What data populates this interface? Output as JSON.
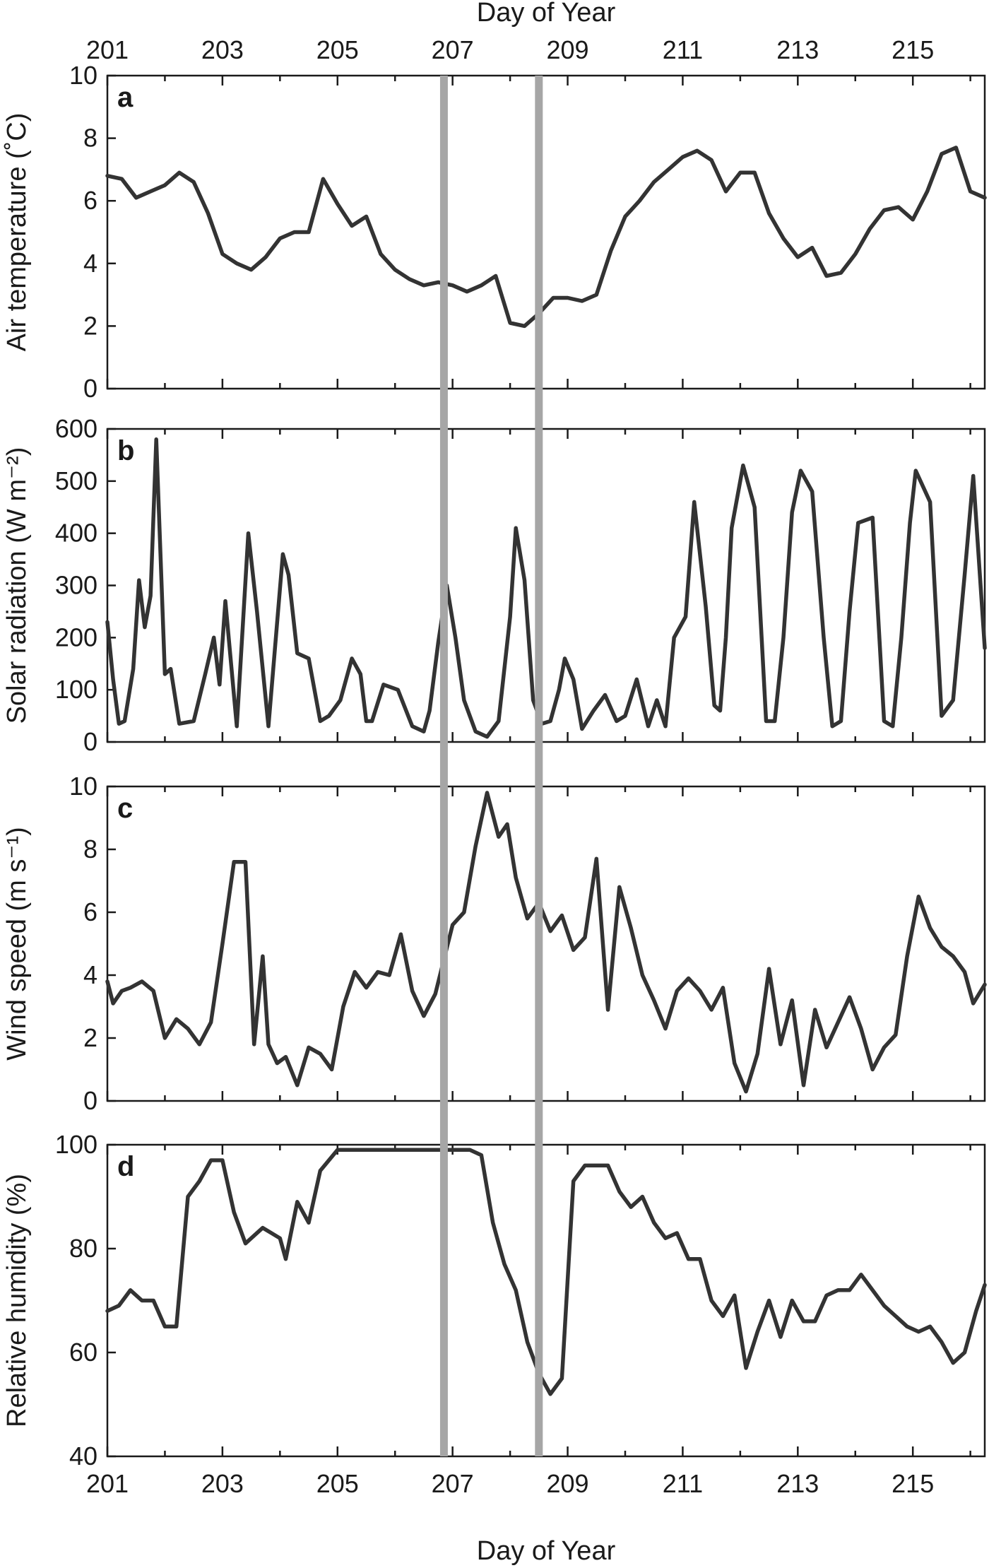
{
  "figure": {
    "top_axis_title": "Day of Year",
    "bottom_axis_title": "Day of Year",
    "x_tick_labels": [
      "201",
      "203",
      "205",
      "207",
      "209",
      "211",
      "213",
      "215"
    ]
  },
  "chart_data": [
    {
      "type": "line",
      "panel": "a",
      "ylabel": "Air temperature (˚C)",
      "xlabel": "Day of Year",
      "xlim": [
        201,
        216.25
      ],
      "ylim": [
        0,
        10
      ],
      "yticks": [
        0,
        2,
        4,
        6,
        8,
        10
      ],
      "grid": false,
      "colors": {
        "line": "#333333",
        "marker": "#a6a6a6"
      },
      "vertical_markers": [
        206.85,
        208.5
      ],
      "x": [
        201.0,
        201.25,
        201.5,
        201.75,
        202.0,
        202.25,
        202.5,
        202.75,
        203.0,
        203.25,
        203.5,
        203.75,
        204.0,
        204.25,
        204.5,
        204.75,
        205.0,
        205.25,
        205.5,
        205.75,
        206.0,
        206.25,
        206.5,
        206.75,
        207.0,
        207.25,
        207.5,
        207.75,
        208.0,
        208.25,
        208.5,
        208.75,
        209.0,
        209.25,
        209.5,
        209.75,
        210.0,
        210.25,
        210.5,
        210.75,
        211.0,
        211.25,
        211.5,
        211.75,
        212.0,
        212.25,
        212.5,
        212.75,
        213.0,
        213.25,
        213.5,
        213.75,
        214.0,
        214.25,
        214.5,
        214.75,
        215.0,
        215.25,
        215.5,
        215.75,
        216.0,
        216.25
      ],
      "y": [
        6.8,
        6.7,
        6.1,
        6.3,
        6.5,
        6.9,
        6.6,
        5.6,
        4.3,
        4.0,
        3.8,
        4.2,
        4.8,
        5.0,
        5.0,
        6.7,
        5.9,
        5.2,
        5.5,
        4.3,
        3.8,
        3.5,
        3.3,
        3.4,
        3.3,
        3.1,
        3.3,
        3.6,
        2.1,
        2.0,
        2.4,
        2.9,
        2.9,
        2.8,
        3.0,
        4.4,
        5.5,
        6.0,
        6.6,
        7.0,
        7.4,
        7.6,
        7.3,
        6.3,
        6.9,
        6.9,
        5.6,
        4.8,
        4.2,
        4.5,
        3.6,
        3.7,
        4.3,
        5.1,
        5.7,
        5.8,
        5.4,
        6.3,
        7.5,
        7.7,
        6.3,
        6.1
      ]
    },
    {
      "type": "line",
      "panel": "b",
      "ylabel": "Solar radiation (W m⁻²)",
      "xlabel": "Day of Year",
      "xlim": [
        201,
        216.25
      ],
      "ylim": [
        0,
        600
      ],
      "yticks": [
        0,
        100,
        200,
        300,
        400,
        500,
        600
      ],
      "grid": false,
      "x": [
        201.0,
        201.1,
        201.2,
        201.3,
        201.45,
        201.55,
        201.65,
        201.75,
        201.85,
        202.0,
        202.1,
        202.25,
        202.5,
        202.7,
        202.85,
        202.95,
        203.05,
        203.25,
        203.45,
        203.6,
        203.8,
        204.05,
        204.15,
        204.3,
        204.5,
        204.7,
        204.85,
        205.05,
        205.25,
        205.4,
        205.5,
        205.6,
        205.8,
        206.05,
        206.3,
        206.5,
        206.6,
        206.75,
        206.9,
        207.05,
        207.2,
        207.4,
        207.6,
        207.8,
        208.0,
        208.1,
        208.25,
        208.4,
        208.55,
        208.7,
        208.85,
        208.95,
        209.1,
        209.25,
        209.45,
        209.65,
        209.85,
        210.0,
        210.2,
        210.4,
        210.55,
        210.7,
        210.85,
        211.05,
        211.2,
        211.4,
        211.55,
        211.65,
        211.75,
        211.85,
        212.05,
        212.25,
        212.45,
        212.6,
        212.75,
        212.9,
        213.05,
        213.25,
        213.45,
        213.6,
        213.75,
        213.9,
        214.05,
        214.3,
        214.5,
        214.65,
        214.8,
        214.95,
        215.05,
        215.3,
        215.5,
        215.7,
        215.9,
        216.05,
        216.25
      ],
      "y": [
        230,
        120,
        35,
        40,
        140,
        310,
        220,
        280,
        580,
        130,
        140,
        35,
        40,
        130,
        200,
        110,
        270,
        30,
        400,
        250,
        30,
        360,
        320,
        170,
        160,
        40,
        50,
        80,
        160,
        130,
        40,
        40,
        110,
        100,
        30,
        20,
        60,
        190,
        300,
        200,
        80,
        20,
        10,
        40,
        240,
        410,
        310,
        80,
        35,
        40,
        100,
        160,
        120,
        25,
        60,
        90,
        40,
        50,
        120,
        30,
        80,
        30,
        200,
        240,
        460,
        260,
        70,
        60,
        200,
        410,
        530,
        450,
        40,
        40,
        200,
        440,
        520,
        480,
        200,
        30,
        40,
        250,
        420,
        430,
        40,
        30,
        200,
        420,
        520,
        460,
        50,
        80,
        320,
        510,
        180
      ]
    },
    {
      "type": "line",
      "panel": "c",
      "ylabel": "Wind speed (m s⁻¹)",
      "xlabel": "Day of Year",
      "xlim": [
        201,
        216.25
      ],
      "ylim": [
        0,
        10
      ],
      "yticks": [
        0,
        2,
        4,
        6,
        8,
        10
      ],
      "grid": false,
      "x": [
        201.0,
        201.1,
        201.25,
        201.4,
        201.6,
        201.8,
        202.0,
        202.2,
        202.4,
        202.6,
        202.8,
        203.0,
        203.2,
        203.4,
        203.55,
        203.7,
        203.8,
        203.95,
        204.1,
        204.3,
        204.5,
        204.7,
        204.9,
        205.1,
        205.3,
        205.5,
        205.7,
        205.9,
        206.1,
        206.3,
        206.5,
        206.7,
        206.85,
        207.0,
        207.2,
        207.4,
        207.6,
        207.8,
        207.95,
        208.1,
        208.3,
        208.5,
        208.7,
        208.9,
        209.1,
        209.3,
        209.5,
        209.7,
        209.9,
        210.1,
        210.3,
        210.5,
        210.7,
        210.9,
        211.1,
        211.3,
        211.5,
        211.7,
        211.9,
        212.1,
        212.3,
        212.5,
        212.7,
        212.9,
        213.1,
        213.3,
        213.5,
        213.7,
        213.9,
        214.1,
        214.3,
        214.5,
        214.7,
        214.9,
        215.1,
        215.3,
        215.5,
        215.7,
        215.9,
        216.05,
        216.25
      ],
      "y": [
        3.8,
        3.1,
        3.5,
        3.6,
        3.8,
        3.5,
        2.0,
        2.6,
        2.3,
        1.8,
        2.5,
        5.0,
        7.6,
        7.6,
        1.8,
        4.6,
        1.8,
        1.2,
        1.4,
        0.5,
        1.7,
        1.5,
        1.0,
        3.0,
        4.1,
        3.6,
        4.1,
        4.0,
        5.3,
        3.5,
        2.7,
        3.4,
        4.5,
        5.6,
        6.0,
        8.1,
        9.8,
        8.4,
        8.8,
        7.1,
        5.8,
        6.3,
        5.4,
        5.9,
        4.8,
        5.2,
        7.7,
        2.9,
        6.8,
        5.5,
        4.0,
        3.2,
        2.3,
        3.5,
        3.9,
        3.5,
        2.9,
        3.6,
        1.2,
        0.3,
        1.5,
        4.2,
        1.8,
        3.2,
        0.5,
        2.9,
        1.7,
        2.5,
        3.3,
        2.3,
        1.0,
        1.7,
        2.1,
        4.6,
        6.5,
        5.5,
        4.9,
        4.6,
        4.1,
        3.1,
        3.7
      ]
    },
    {
      "type": "line",
      "panel": "d",
      "ylabel": "Relative humidity (%)",
      "xlabel": "Day of Year",
      "xlim": [
        201,
        216.25
      ],
      "ylim": [
        40,
        100
      ],
      "yticks": [
        40,
        60,
        80,
        100
      ],
      "grid": false,
      "x": [
        201.0,
        201.2,
        201.4,
        201.6,
        201.8,
        202.0,
        202.2,
        202.4,
        202.6,
        202.8,
        203.0,
        203.2,
        203.4,
        203.5,
        203.7,
        204.0,
        204.1,
        204.3,
        204.5,
        204.7,
        205.0,
        205.5,
        206.0,
        206.5,
        206.8,
        207.0,
        207.3,
        207.5,
        207.7,
        207.9,
        208.1,
        208.3,
        208.5,
        208.7,
        208.9,
        209.1,
        209.3,
        209.5,
        209.7,
        209.9,
        210.1,
        210.3,
        210.5,
        210.7,
        210.9,
        211.1,
        211.3,
        211.5,
        211.7,
        211.9,
        212.1,
        212.3,
        212.5,
        212.7,
        212.9,
        213.1,
        213.3,
        213.5,
        213.7,
        213.9,
        214.1,
        214.3,
        214.5,
        214.7,
        214.9,
        215.1,
        215.3,
        215.5,
        215.7,
        215.9,
        216.1,
        216.25
      ],
      "y": [
        68,
        69,
        72,
        70,
        70,
        65,
        65,
        90,
        93,
        97,
        97,
        87,
        81,
        82,
        84,
        82,
        78,
        89,
        85,
        95,
        99,
        99,
        99,
        99,
        99,
        99,
        99,
        98,
        85,
        77,
        72,
        62,
        56,
        52,
        55,
        93,
        96,
        96,
        96,
        91,
        88,
        90,
        85,
        82,
        83,
        78,
        78,
        70,
        67,
        71,
        57,
        64,
        70,
        63,
        70,
        66,
        66,
        71,
        72,
        72,
        75,
        72,
        69,
        67,
        65,
        64,
        65,
        62,
        58,
        60,
        68,
        73
      ]
    }
  ]
}
